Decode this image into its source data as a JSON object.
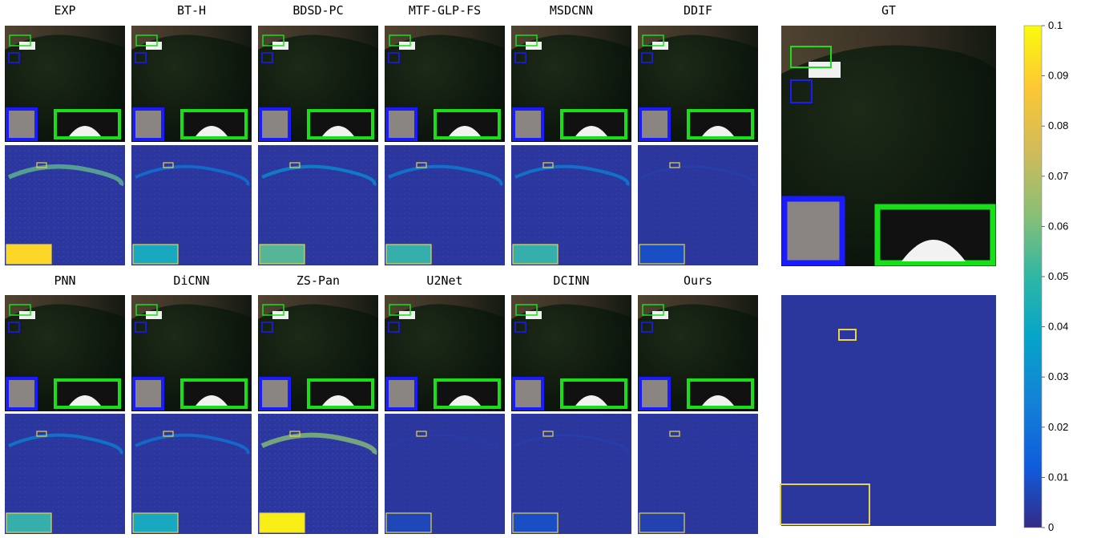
{
  "methods": [
    {
      "name": "EXP"
    },
    {
      "name": "BT-H"
    },
    {
      "name": "BDSD-PC"
    },
    {
      "name": "MTF-GLP-FS"
    },
    {
      "name": "MSDCNN"
    },
    {
      "name": "DDIF"
    },
    {
      "name": "PNN"
    },
    {
      "name": "DiCNN"
    },
    {
      "name": "ZS-Pan"
    },
    {
      "name": "U2Net"
    },
    {
      "name": "DCINN"
    },
    {
      "name": "Ours"
    }
  ],
  "ground_truth": {
    "name": "GT"
  },
  "colorbar": {
    "min": 0,
    "max": 0.1,
    "ticks": [
      "0",
      "0.01",
      "0.02",
      "0.03",
      "0.04",
      "0.05",
      "0.06",
      "0.07",
      "0.08",
      "0.09",
      "0.1"
    ],
    "colormap": "parula",
    "colors": [
      "#352a87",
      "#0f5cdd",
      "#1481d6",
      "#06a4ca",
      "#2eb7a4",
      "#87bf77",
      "#d1bb59",
      "#fec832",
      "#f9fb0e"
    ]
  },
  "error_levels": [
    0.9,
    0.45,
    0.55,
    0.5,
    0.5,
    0.15,
    0.5,
    0.45,
    1.0,
    0.12,
    0.15,
    0.1
  ],
  "box_colors": {
    "blue_zoom": "#1b1bff",
    "green_zoom": "#18e018",
    "error_zoom": "#e8d44a"
  }
}
